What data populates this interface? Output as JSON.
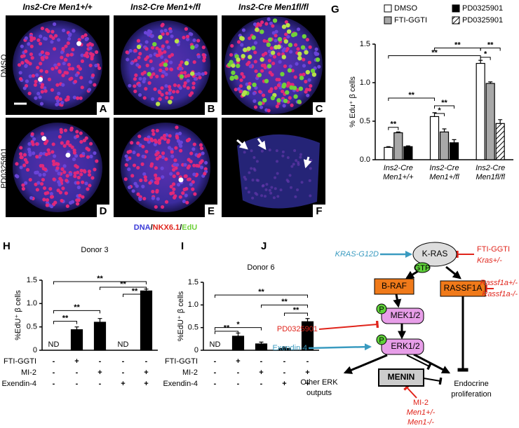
{
  "panels": {
    "columns": [
      "Ins2-Cre Men1+/+",
      "Ins2-Cre Men1+/fl",
      "Ins2-Cre Men1fl/fl"
    ],
    "rows": [
      "DMSO",
      "PD0325901"
    ],
    "letters": [
      "A",
      "B",
      "C",
      "D",
      "E",
      "F"
    ],
    "legend": [
      "DNA",
      "/",
      "NKX6.1",
      "/",
      "EdU"
    ]
  },
  "chart_data": [
    {
      "type": "bar",
      "panel": "G",
      "ylabel": "% Edu⁺ β cells",
      "categories": [
        "Ins2-Cre Men1+/+",
        "Ins2-Cre Men1+/fl",
        "Ins2-Cre Men1fl/fl"
      ],
      "ylim": [
        0,
        1.5
      ],
      "yticks": [
        {
          "value": 0,
          "label": "0.0"
        },
        0.5,
        {
          "value": 1,
          "label": "1.0"
        },
        1.5
      ],
      "series": [
        {
          "name": "DMSO",
          "color": "#ffffff",
          "values": [
            0.16,
            0.56,
            1.25
          ],
          "errors": [
            0.01,
            0.05,
            0.04
          ]
        },
        {
          "name": "FTI-GGTI",
          "color": "#a8a8a8",
          "values": [
            0.35,
            0.36,
            0.99
          ],
          "errors": [
            0.01,
            0.04,
            0.02
          ]
        },
        {
          "name": "PD0325901",
          "color": "#000000",
          "values": [
            0.17,
            0.22,
            null
          ],
          "errors": [
            0.01,
            0.04,
            null
          ]
        },
        {
          "name": "PD0325901",
          "color": "#ffffff",
          "hatch": true,
          "values": [
            null,
            null,
            0.47
          ],
          "errors": [
            null,
            null,
            0.05
          ]
        }
      ],
      "annotations": [
        "**",
        "**",
        "*",
        "**",
        "**",
        "**",
        "*",
        "**"
      ]
    },
    {
      "type": "bar",
      "panel": "H",
      "title": "Donor 3",
      "ylabel": "%EdU⁺ β cells",
      "ylim": [
        0,
        1.5
      ],
      "yticks": [
        0,
        0.5,
        {
          "value": 1,
          "label": "1.0"
        },
        1.5
      ],
      "color": "#000000",
      "values": [
        null,
        0.44,
        0.6,
        null,
        1.27
      ],
      "errors": [
        null,
        0.06,
        0.08,
        null,
        0.04
      ],
      "value_labels": [
        "ND",
        null,
        null,
        "ND",
        null
      ],
      "conditions": [
        {
          "name": "FTI-GGTI",
          "marks": [
            "-",
            "+",
            "-",
            "-",
            "-"
          ]
        },
        {
          "name": "MI-2",
          "marks": [
            "-",
            "-",
            "+",
            "-",
            "+"
          ]
        },
        {
          "name": "Exendin-4",
          "marks": [
            "-",
            "-",
            "-",
            "+",
            "+"
          ]
        }
      ],
      "annotations": [
        "**",
        "**",
        "**",
        "**",
        "**"
      ]
    },
    {
      "type": "bar",
      "panel": "I",
      "title": "Donor 6",
      "ylabel": "%EdU⁺ β cells",
      "ylim": [
        0,
        1.5
      ],
      "yticks": [
        0,
        0.5,
        {
          "value": 1,
          "label": "1.0"
        },
        1.5
      ],
      "color": "#000000",
      "values": [
        null,
        0.31,
        0.14,
        0.04,
        0.63
      ],
      "errors": [
        null,
        0.07,
        0.04,
        0.03,
        0.07
      ],
      "value_labels": [
        "ND",
        null,
        null,
        null,
        null
      ],
      "conditions": [
        {
          "name": "FTI-GGTI",
          "marks": [
            "-",
            "+",
            "-",
            "-",
            "-"
          ]
        },
        {
          "name": "MI-2",
          "marks": [
            "-",
            "-",
            "+",
            "-",
            "+"
          ]
        },
        {
          "name": "Exendin-4",
          "marks": [
            "-",
            "-",
            "-",
            "+",
            "+"
          ]
        }
      ],
      "annotations": [
        "**",
        "**",
        "**",
        "*",
        "**"
      ]
    }
  ],
  "diagram": {
    "panel": "J",
    "kras": "K-RAS",
    "gtp": "GTP",
    "braf": "B-RAF",
    "rassf1a": "RASSF1A",
    "p1": "P",
    "mek": "MEK1/2",
    "p2": "P",
    "erk": "ERK1/2",
    "menin": "MENIN",
    "other1": "Other ERK",
    "other2": "outputs",
    "endo1": "Endocrine",
    "endo2": "proliferation",
    "krasg12d": "KRAS-G12D",
    "ftigg": "FTI-GGTI",
    "krashet": "Kras+/-",
    "rassf1": "Rassf1a+/-",
    "rassf2": "Rassf1a-/-",
    "pd": "PD0325901",
    "exendin": "Exendin-4",
    "mi2": "MI-2",
    "men1a": "Men1+/-",
    "men1b": "Men1-/-"
  }
}
